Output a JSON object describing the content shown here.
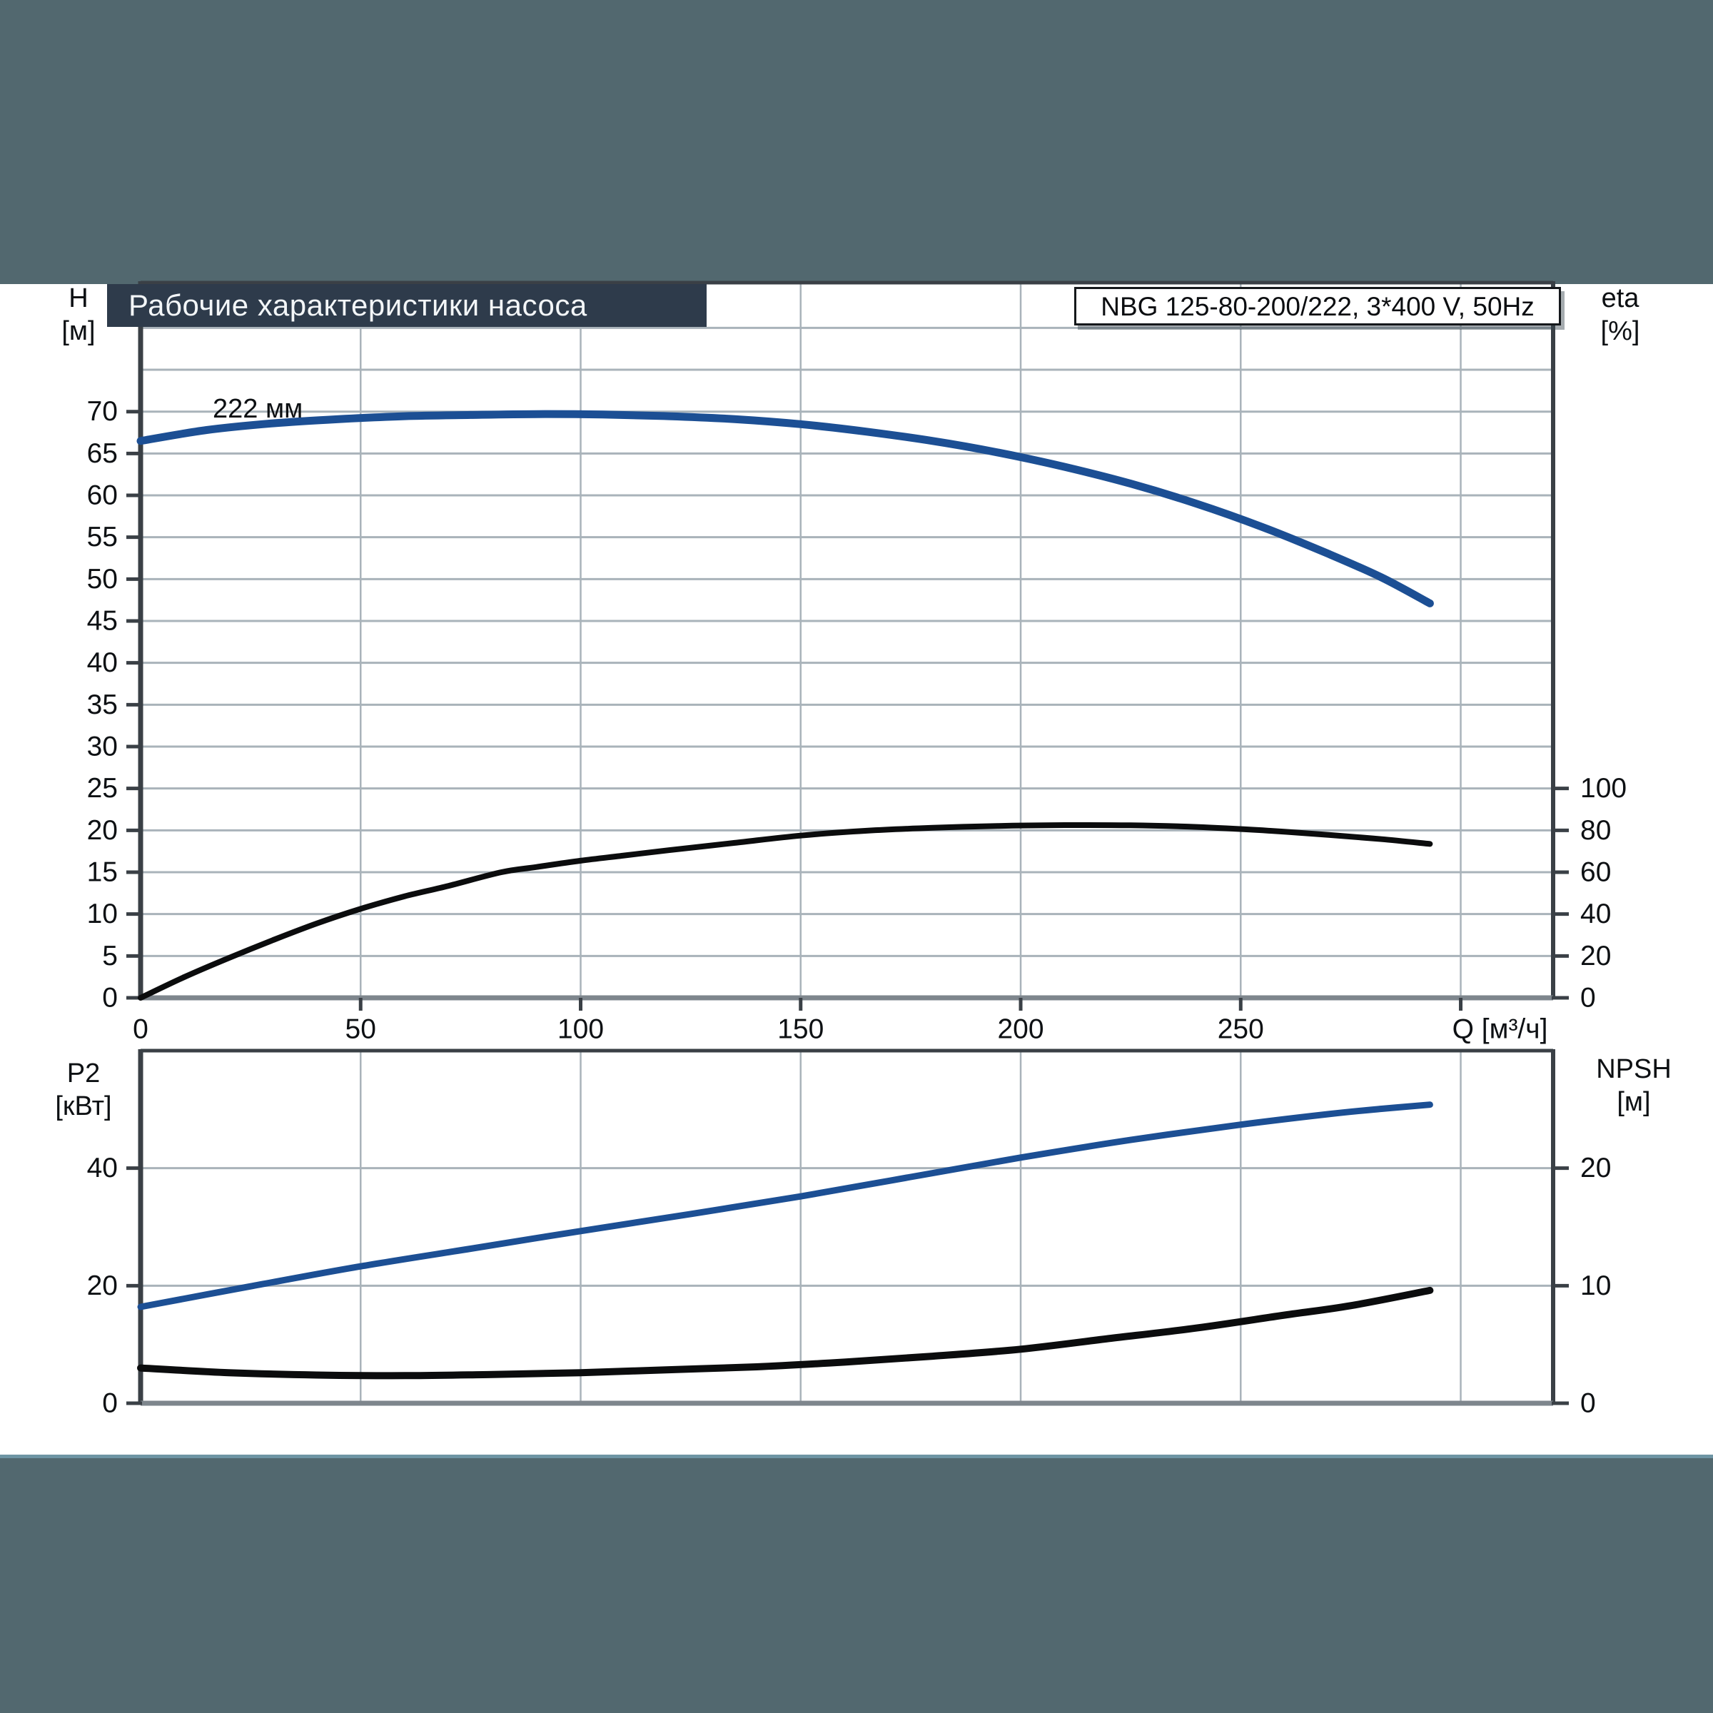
{
  "page": {
    "title": "Рабочие характеристики насоса",
    "model": "NBG 125-80-200/222, 3*400 V, 50Hz"
  },
  "colors": {
    "background": "#52686F",
    "paper": "#FFFFFF",
    "title_bg": "#2E3B4B",
    "title_text": "#F3F6F8",
    "frame": "#3A4046",
    "baseline": "#7E868D",
    "grid": "#A9B3BA",
    "blue": "#1C4F94",
    "black": "#0B0C0D",
    "bottom_rule": "#6E95A4",
    "tick_text": "#0D1013"
  },
  "chart_data": [
    {
      "type": "line",
      "title": "Head and efficiency vs flow",
      "x": {
        "label": "Q [м³/ч]",
        "min": 0,
        "max": 321,
        "ticks": [
          0,
          50,
          100,
          150,
          200,
          250
        ],
        "grid": [
          50,
          100,
          150,
          200,
          250,
          300
        ],
        "label_at": 300
      },
      "y_left": {
        "label": "H",
        "unit": "[м]",
        "min": 0,
        "max": 85.4,
        "ticks": [
          0,
          5,
          10,
          15,
          20,
          25,
          30,
          35,
          40,
          45,
          50,
          55,
          60,
          65,
          70
        ],
        "grid": [
          5,
          10,
          15,
          20,
          25,
          30,
          35,
          40,
          45,
          50,
          55,
          60,
          65,
          70,
          75,
          80
        ]
      },
      "y_right": {
        "label": "eta",
        "unit": "[%]",
        "min": 0,
        "max": 341.6,
        "ticks": [
          0,
          20,
          40,
          60,
          80,
          100
        ]
      },
      "series": [
        {
          "name": "222 мм",
          "axis": "left",
          "color": "blue",
          "width": 11,
          "points": [
            [
              0,
              66.5
            ],
            [
              15,
              67.8
            ],
            [
              30,
              68.6
            ],
            [
              45,
              69.1
            ],
            [
              60,
              69.45
            ],
            [
              75,
              69.6
            ],
            [
              90,
              69.7
            ],
            [
              105,
              69.65
            ],
            [
              120,
              69.45
            ],
            [
              135,
              69.1
            ],
            [
              150,
              68.5
            ],
            [
              165,
              67.6
            ],
            [
              180,
              66.5
            ],
            [
              195,
              65.1
            ],
            [
              210,
              63.4
            ],
            [
              225,
              61.4
            ],
            [
              240,
              59.0
            ],
            [
              255,
              56.2
            ],
            [
              270,
              53.0
            ],
            [
              282,
              50.2
            ],
            [
              293,
              47.1
            ]
          ]
        },
        {
          "name": "eta",
          "axis": "right",
          "color": "black",
          "width": 8,
          "points": [
            [
              0,
              0
            ],
            [
              10,
              10
            ],
            [
              20,
              19
            ],
            [
              30,
              27.5
            ],
            [
              40,
              35.5
            ],
            [
              50,
              42.5
            ],
            [
              60,
              48.5
            ],
            [
              70,
              53.5
            ],
            [
              82,
              60
            ],
            [
              90,
              62.5
            ],
            [
              100,
              65.5
            ],
            [
              110,
              68
            ],
            [
              120,
              70.5
            ],
            [
              135,
              74
            ],
            [
              150,
              77.5
            ],
            [
              165,
              79.8
            ],
            [
              180,
              81.2
            ],
            [
              195,
              82.1
            ],
            [
              210,
              82.5
            ],
            [
              225,
              82.4
            ],
            [
              240,
              81.6
            ],
            [
              255,
              80
            ],
            [
              270,
              77.8
            ],
            [
              282,
              75.8
            ],
            [
              293,
              73.5
            ]
          ]
        }
      ]
    },
    {
      "type": "line",
      "title": "Power and NPSH vs flow",
      "x": {
        "label": "",
        "min": 0,
        "max": 321,
        "ticks": [],
        "grid": [
          50,
          100,
          150,
          200,
          250,
          300
        ],
        "label_at": 300
      },
      "y_left": {
        "label": "P2",
        "unit": "[кВт]",
        "min": 0,
        "max": 60,
        "ticks": [
          0,
          20,
          40
        ],
        "grid": [
          20,
          40
        ]
      },
      "y_right": {
        "label": "NPSH",
        "unit": "[м]",
        "min": 0,
        "max": 30,
        "ticks": [
          0,
          10,
          20
        ]
      },
      "series": [
        {
          "name": "P2",
          "axis": "left",
          "color": "blue",
          "width": 9,
          "points": [
            [
              0,
              16.4
            ],
            [
              25,
              19.9
            ],
            [
              50,
              23.3
            ],
            [
              75,
              26.3
            ],
            [
              100,
              29.3
            ],
            [
              125,
              32.2
            ],
            [
              150,
              35.2
            ],
            [
              175,
              38.5
            ],
            [
              200,
              41.8
            ],
            [
              225,
              44.8
            ],
            [
              250,
              47.4
            ],
            [
              270,
              49.2
            ],
            [
              282,
              50.1
            ],
            [
              293,
              50.8
            ]
          ]
        },
        {
          "name": "NPSH",
          "axis": "right",
          "color": "black",
          "width": 10,
          "points": [
            [
              0,
              3.0
            ],
            [
              20,
              2.6
            ],
            [
              40,
              2.4
            ],
            [
              60,
              2.35
            ],
            [
              80,
              2.45
            ],
            [
              100,
              2.6
            ],
            [
              120,
              2.85
            ],
            [
              140,
              3.1
            ],
            [
              160,
              3.5
            ],
            [
              180,
              4.0
            ],
            [
              200,
              4.6
            ],
            [
              220,
              5.5
            ],
            [
              240,
              6.4
            ],
            [
              260,
              7.5
            ],
            [
              275,
              8.3
            ],
            [
              293,
              9.6
            ]
          ]
        }
      ]
    }
  ]
}
